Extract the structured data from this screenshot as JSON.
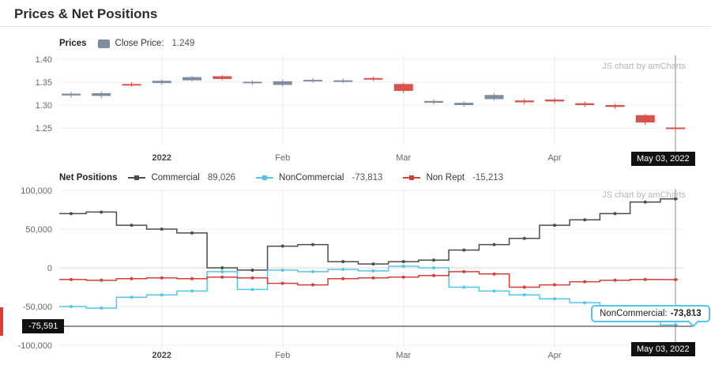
{
  "page": {
    "title": "Prices & Net Positions"
  },
  "prices": {
    "legend_title": "Prices",
    "close_label": "Close Price:",
    "close_value": "1.249",
    "watermark": "JS chart by amCharts",
    "cursor_date": "May 03, 2022"
  },
  "positions": {
    "legend_title": "Net Positions",
    "watermark": "JS chart by amCharts",
    "cursor_date": "May 03, 2022",
    "cursor_value": "-75,591",
    "tooltip": {
      "label": "NonCommercial:",
      "value": "-73,813"
    }
  },
  "chart_data": [
    {
      "type": "candlestick",
      "title": "Prices",
      "legend": {
        "label": "Close Price",
        "value": 1.249
      },
      "up_color": "#7f8da0",
      "down_color": "#d9534d",
      "ylim": [
        1.225,
        1.405
      ],
      "grid": true,
      "y_ticks": [
        {
          "v": 1.4,
          "label": "1.40"
        },
        {
          "v": 1.35,
          "label": "1.35"
        },
        {
          "v": 1.3,
          "label": "1.30"
        },
        {
          "v": 1.25,
          "label": "1.25"
        }
      ],
      "x_ticks": [
        {
          "label": "2022",
          "index": 3,
          "bold": true
        },
        {
          "label": "Feb",
          "index": 7
        },
        {
          "label": "Mar",
          "index": 11
        },
        {
          "label": "Apr",
          "index": 16
        }
      ],
      "cursor": {
        "date": "May 03, 2022",
        "x_index": 20
      },
      "candles_format": [
        "open",
        "high",
        "low",
        "close"
      ],
      "candles": [
        [
          1.321,
          1.329,
          1.316,
          1.325
        ],
        [
          1.32,
          1.33,
          1.315,
          1.326
        ],
        [
          1.346,
          1.35,
          1.34,
          1.343
        ],
        [
          1.348,
          1.356,
          1.344,
          1.353
        ],
        [
          1.354,
          1.364,
          1.351,
          1.361
        ],
        [
          1.363,
          1.366,
          1.354,
          1.357
        ],
        [
          1.349,
          1.354,
          1.344,
          1.351
        ],
        [
          1.344,
          1.356,
          1.34,
          1.352
        ],
        [
          1.353,
          1.359,
          1.349,
          1.355
        ],
        [
          1.352,
          1.358,
          1.348,
          1.354
        ],
        [
          1.359,
          1.362,
          1.353,
          1.356
        ],
        [
          1.346,
          1.349,
          1.326,
          1.331
        ],
        [
          1.305,
          1.313,
          1.301,
          1.309
        ],
        [
          1.3,
          1.308,
          1.296,
          1.305
        ],
        [
          1.313,
          1.326,
          1.31,
          1.322
        ],
        [
          1.31,
          1.314,
          1.301,
          1.306
        ],
        [
          1.312,
          1.316,
          1.304,
          1.308
        ],
        [
          1.304,
          1.308,
          1.296,
          1.3
        ],
        [
          1.3,
          1.303,
          1.292,
          1.296
        ],
        [
          1.278,
          1.281,
          1.257,
          1.262
        ],
        [
          1.251,
          1.255,
          1.243,
          1.249
        ]
      ]
    },
    {
      "type": "line",
      "step": true,
      "title": "Net Positions",
      "ylim": [
        -100000,
        100000
      ],
      "grid": true,
      "legend_position": "top",
      "y_ticks": [
        {
          "v": 100000,
          "label": "100,000"
        },
        {
          "v": 50000,
          "label": "50,000"
        },
        {
          "v": 0,
          "label": "0"
        },
        {
          "v": -50000,
          "label": "-50,000"
        },
        {
          "v": -100000,
          "label": "-100,000"
        }
      ],
      "x_ticks": [
        {
          "label": "2022",
          "index": 3,
          "bold": true
        },
        {
          "label": "Feb",
          "index": 7
        },
        {
          "label": "Mar",
          "index": 11
        },
        {
          "label": "Apr",
          "index": 16
        }
      ],
      "cursor": {
        "date": "May 03, 2022",
        "x_index": 20,
        "hline_value": -75591,
        "hline_label": "-75,591"
      },
      "series": [
        {
          "name": "Commercial",
          "legend_value": "89,026",
          "color": "#4c4c4c",
          "values": [
            70000,
            72000,
            55000,
            50000,
            45000,
            0,
            -3000,
            28000,
            30000,
            8000,
            5000,
            8000,
            10000,
            23000,
            30000,
            38000,
            55000,
            62000,
            70000,
            85000,
            89026
          ]
        },
        {
          "name": "NonCommercial",
          "legend_value": "-73,813",
          "color": "#56c5ea",
          "values": [
            -50000,
            -52000,
            -38000,
            -35000,
            -30000,
            -5000,
            -28000,
            -3000,
            -5000,
            -2000,
            -4000,
            2000,
            0,
            -25000,
            -30000,
            -35000,
            -40000,
            -45000,
            -50000,
            -58000,
            -73813
          ]
        },
        {
          "name": "Non Rept",
          "legend_value": "-15,213",
          "color": "#d43f3a",
          "values": [
            -15000,
            -16000,
            -14000,
            -13000,
            -14000,
            -12000,
            -13000,
            -20000,
            -22000,
            -14000,
            -13000,
            -12000,
            -10000,
            -5000,
            -8000,
            -25000,
            -22000,
            -18000,
            -16000,
            -15000,
            -15213
          ]
        }
      ]
    }
  ]
}
